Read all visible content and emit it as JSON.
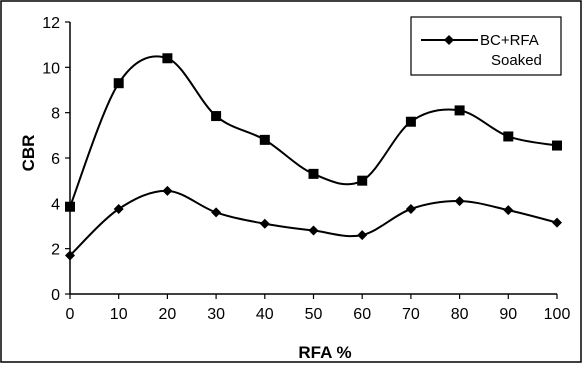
{
  "chart_data": {
    "type": "line",
    "title": "",
    "xlabel": "RFA %",
    "ylabel": "CBR",
    "x": [
      0,
      10,
      20,
      30,
      40,
      50,
      60,
      70,
      80,
      90,
      100
    ],
    "xlim": [
      0,
      100
    ],
    "ylim": [
      0,
      12
    ],
    "x_ticks": [
      "0",
      "10",
      "20",
      "30",
      "40",
      "50",
      "60",
      "70",
      "80",
      "90",
      "100"
    ],
    "y_ticks": [
      "0",
      "2",
      "4",
      "6",
      "8",
      "10",
      "12"
    ],
    "grid": false,
    "smooth": true,
    "legend_position": "top-right",
    "series": [
      {
        "name": "",
        "marker": "square",
        "color": "#000000",
        "values": [
          3.85,
          9.3,
          10.4,
          7.85,
          6.8,
          5.3,
          5.0,
          7.6,
          8.1,
          6.95,
          6.55
        ]
      },
      {
        "name": "BC+RFA Soaked",
        "legend_lines": [
          "BC+RFA",
          "Soaked"
        ],
        "marker": "diamond",
        "color": "#000000",
        "values": [
          1.7,
          3.75,
          4.55,
          3.6,
          3.1,
          2.8,
          2.6,
          3.75,
          4.1,
          3.7,
          3.15
        ]
      }
    ]
  }
}
